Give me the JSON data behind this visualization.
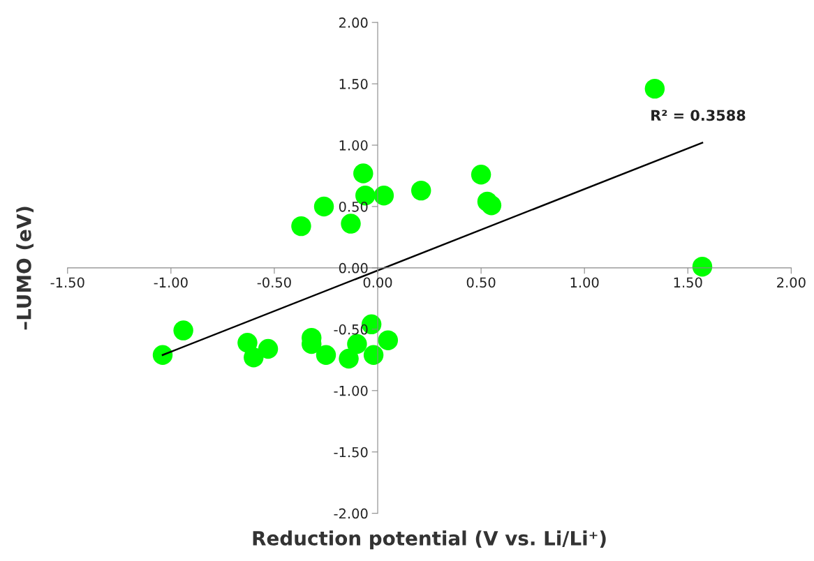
{
  "chart_data": {
    "type": "scatter",
    "xlabel": "Reduction potential (V vs. Li/Li⁺)",
    "ylabel": "–LUMO (eV)",
    "xlim": [
      -1.5,
      2.0
    ],
    "xticks": [
      {
        "value": -1.5,
        "label": "-1.50"
      },
      {
        "value": -1.0,
        "label": "-1.00"
      },
      {
        "value": -0.5,
        "label": "-0.50"
      },
      {
        "value": 0,
        "label": "0.00"
      },
      {
        "value": 0.5,
        "label": "0.50"
      },
      {
        "value": 1.0,
        "label": "1.00"
      },
      {
        "value": 1.5,
        "label": "1.50"
      },
      {
        "value": 2.0,
        "label": "2.00"
      }
    ],
    "ylim": [
      -2.0,
      2.0
    ],
    "yticks": [
      {
        "value": -2.0,
        "label": "-2.00"
      },
      {
        "value": -1.5,
        "label": "-1.50"
      },
      {
        "value": -1.0,
        "label": "-1.00"
      },
      {
        "value": -0.5,
        "label": "-0.50"
      },
      {
        "value": 0,
        "label": "0.00"
      },
      {
        "value": 0.5,
        "label": "0.50"
      },
      {
        "value": 1.0,
        "label": "1.00"
      },
      {
        "value": 1.5,
        "label": "1.50"
      },
      {
        "value": 2.0,
        "label": "2.00"
      }
    ],
    "grid": false,
    "legend": false,
    "marker": "circle",
    "annotations": [
      "R² = 0.3588"
    ],
    "series": [
      {
        "color": "#00ff00",
        "x": [
          -0.07,
          -0.06,
          0.03,
          0.21,
          0.5,
          0.53,
          0.55,
          -0.26,
          -0.37,
          -0.13,
          -0.94,
          -1.04,
          -0.63,
          -0.6,
          -0.53,
          -0.32,
          -0.32,
          -0.25,
          -0.14,
          -0.1,
          -0.03,
          -0.02,
          0.05,
          1.34,
          1.57
        ],
        "values": [
          0.77,
          0.59,
          0.59,
          0.63,
          0.76,
          0.54,
          0.51,
          0.5,
          0.34,
          0.36,
          -0.51,
          -0.71,
          -0.61,
          -0.73,
          -0.66,
          -0.57,
          -0.62,
          -0.71,
          -0.74,
          -0.62,
          -0.46,
          -0.71,
          -0.59,
          1.46,
          0.01
        ]
      },
      {
        "type": "line",
        "color": "#000000",
        "line_style": "solid",
        "marker": "none",
        "x": [
          -1.04,
          1.57
        ],
        "values": [
          -0.71,
          1.02
        ]
      }
    ]
  }
}
